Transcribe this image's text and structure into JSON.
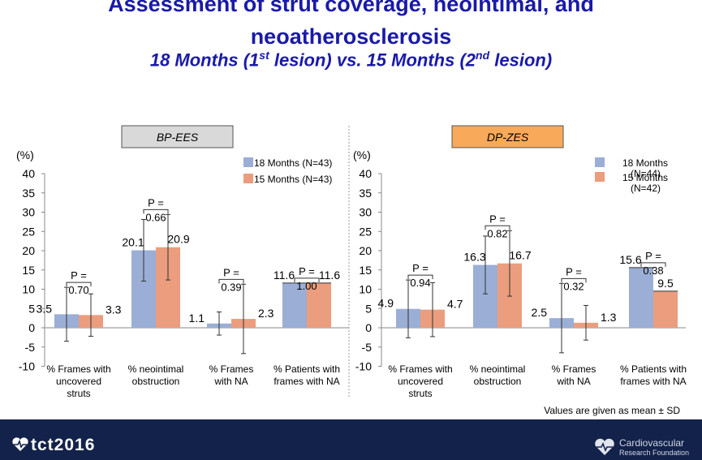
{
  "title_line1": "Assessment of strut coverage, neointimal, and",
  "title_line2": "neoatherosclerosis",
  "subtitle": {
    "a": "18 Months (1",
    "sup1": "st",
    "b": " lesion) vs. 15 Months (2",
    "sup2": "nd",
    "c": " lesion)"
  },
  "footnote": "Values are given as mean ± SD",
  "logo_left": "tct2016",
  "logo_right": {
    "line1": "Cardiovascular",
    "line2": "Research Foundation"
  },
  "colors": {
    "series1": "#9aaed6",
    "series2": "#eb9d7e",
    "bp_box": "#d9d9d9",
    "dp_box": "#f9a95a"
  },
  "chart_data": [
    {
      "type": "bar",
      "title": "BP-EES",
      "ylabel": "(%)",
      "ylim": [
        -10,
        40
      ],
      "yticks": [
        40,
        35,
        30,
        25,
        20,
        15,
        10,
        5,
        0,
        -5,
        -10
      ],
      "categories": [
        [
          "% Frames with",
          "uncovered",
          "struts"
        ],
        [
          "% neointimal",
          "obstruction"
        ],
        [
          "% Frames",
          "with NA"
        ],
        [
          "% Patients with",
          "frames with NA"
        ]
      ],
      "legend": [
        "18 Months (N=43)",
        "15 Months (N=43)"
      ],
      "series": [
        {
          "name": "18 Months",
          "values": [
            3.5,
            20.1,
            1.1,
            11.6
          ],
          "labels": [
            "3.5",
            "20.1",
            "1.1",
            "11.6"
          ],
          "sd": [
            7.0,
            8.0,
            3.0,
            0
          ]
        },
        {
          "name": "15 Months",
          "values": [
            3.3,
            20.9,
            2.3,
            11.6
          ],
          "labels": [
            "3.3",
            "20.9",
            "2.3",
            "11.6"
          ],
          "sd": [
            5.5,
            8.5,
            9.0,
            0
          ]
        }
      ],
      "pvalues": [
        "0.70",
        "0.66",
        "0.39",
        "1.00"
      ],
      "p_label": "P ="
    },
    {
      "type": "bar",
      "title": "DP-ZES",
      "ylabel": "(%)",
      "ylim": [
        -10,
        40
      ],
      "yticks": [
        40,
        35,
        30,
        25,
        20,
        15,
        10,
        5,
        0,
        -5,
        -10
      ],
      "categories": [
        [
          "% Frames with",
          "uncovered",
          "struts"
        ],
        [
          "% neointimal",
          "obstruction"
        ],
        [
          "% Frames",
          "with NA"
        ],
        [
          "% Patients with",
          "frames with NA"
        ]
      ],
      "legend": [
        "18 Months (N=44)",
        "15 Months (N=42)"
      ],
      "series": [
        {
          "name": "18 Months",
          "values": [
            4.9,
            16.3,
            2.5,
            15.6
          ],
          "labels": [
            "4.9",
            "16.3",
            "2.5",
            "15.6"
          ],
          "sd": [
            7.5,
            7.5,
            9.0,
            0
          ]
        },
        {
          "name": "15 Months",
          "values": [
            4.7,
            16.7,
            1.3,
            9.5
          ],
          "labels": [
            "4.7",
            "16.7",
            "1.3",
            "9.5"
          ],
          "sd": [
            7.0,
            8.5,
            4.5,
            0
          ]
        }
      ],
      "pvalues": [
        "0.94",
        "0.82",
        "0.32",
        "0.38"
      ],
      "p_label": "P ="
    }
  ]
}
